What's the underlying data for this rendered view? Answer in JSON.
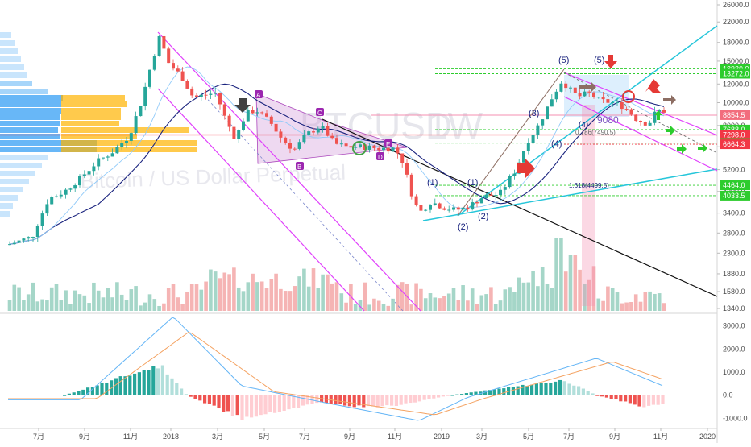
{
  "chart_data": [
    {
      "type": "candlestick",
      "title": "Bitcoin / US Dollar Perpetual",
      "watermark_symbol": "BTCUSD",
      "watermark_interval": "1W",
      "y_scale": "log",
      "ylim": [
        1340,
        26000
      ],
      "y_ticks": [
        "26000.0",
        "22000.0",
        "18000.0",
        "15000.0",
        "12000.0",
        "10000.0",
        "8000.0",
        "6500.0",
        "5200.0",
        "4200.0",
        "3400.0",
        "2800.0",
        "2300.0",
        "1880.0",
        "1580.0",
        "1340.0"
      ],
      "x_ticks": [
        "7月",
        "9月",
        "11月",
        "2018",
        "3月",
        "5月",
        "7月",
        "9月",
        "11月",
        "2019",
        "3月",
        "5月",
        "7月",
        "9月",
        "11月",
        "2020"
      ],
      "price_tags": [
        {
          "value": "13920.0",
          "color": "#2dcc2d"
        },
        {
          "value": "13272.0",
          "color": "#2dcc2d"
        },
        {
          "value": "8854.5",
          "color": "#f26d7d"
        },
        {
          "value": "7688.0",
          "color": "#2dcc2d"
        },
        {
          "value": "7298.0",
          "color": "#f23645"
        },
        {
          "value": "6741.0",
          "color": "#2dcc2d"
        },
        {
          "value": "6664.3",
          "color": "#f23645"
        },
        {
          "value": "4464.0",
          "color": "#2dcc2d"
        },
        {
          "value": "4033.5",
          "color": "#2dcc2d"
        }
      ],
      "wave_labels": [
        "(5)",
        "(3)",
        "(4)",
        "(3)",
        "(4)",
        "(1)",
        "(2)",
        "(1)",
        "(2)",
        "A",
        "B",
        "C",
        "D",
        "E"
      ],
      "fib_labels": [
        "1.618(4499.5)",
        "0.786(7490.5)",
        "9080"
      ],
      "volume_visible": true
    },
    {
      "type": "macd",
      "ylim": [
        -1300,
        3300
      ],
      "y_ticks": [
        "3000.0",
        "2000.0",
        "1000.0",
        "0.0",
        "-1000.0"
      ]
    }
  ]
}
